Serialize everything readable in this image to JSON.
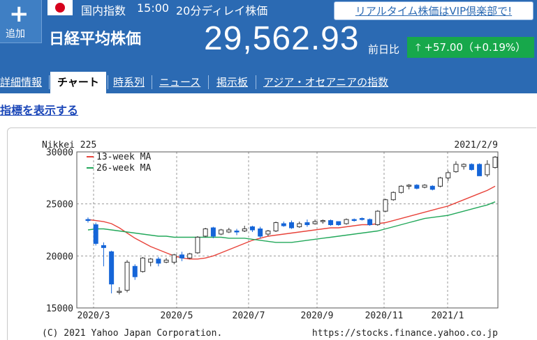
{
  "header": {
    "add_label": "追加",
    "category": "国内指数",
    "time": "15:00",
    "delay": "20分ディレイ株価",
    "name": "日経平均株価",
    "vip_link": "リアルタイム株価はVIP倶楽部で!",
    "price": "29,562.93",
    "prev_label": "前日比",
    "change": "+57.00（+0.19%）",
    "change_color": "#17a84b"
  },
  "tabs": [
    "詳細情報",
    "チャート",
    "時系列",
    "ニュース",
    "掲示板",
    "アジア・オセアニアの指数"
  ],
  "show_indicators": "指標を表示する",
  "chart_labels": {
    "index_name": "Nikkei 225",
    "date": "2021/2/9",
    "copyright": "(C) 2021 Yahoo Japan Corporation.",
    "url": "https://stocks.finance.yahoo.co.jp"
  },
  "chart_data": {
    "type": "candlestick",
    "x_ticks": [
      "2020/3",
      "2020/5",
      "2020/7",
      "2020/9",
      "2020/11",
      "2021/1"
    ],
    "y_ticks": [
      15000,
      20000,
      25000,
      30000
    ],
    "ylim": [
      15000,
      30000
    ],
    "legend": [
      {
        "name": "13-week MA",
        "color": "#e8433a"
      },
      {
        "name": "26-week MA",
        "color": "#22a85a"
      }
    ],
    "candles": [
      {
        "o": 23500,
        "h": 23700,
        "l": 23200,
        "c": 23400
      },
      {
        "o": 23000,
        "h": 23200,
        "l": 21000,
        "c": 21200
      },
      {
        "o": 21000,
        "h": 21300,
        "l": 19000,
        "c": 20800
      },
      {
        "o": 20400,
        "h": 20500,
        "l": 16400,
        "c": 17300
      },
      {
        "o": 16600,
        "h": 17000,
        "l": 16300,
        "c": 16600
      },
      {
        "o": 16700,
        "h": 19600,
        "l": 16500,
        "c": 19400
      },
      {
        "o": 19000,
        "h": 19200,
        "l": 17700,
        "c": 18000
      },
      {
        "o": 18500,
        "h": 19900,
        "l": 18400,
        "c": 19800
      },
      {
        "o": 19400,
        "h": 19800,
        "l": 19000,
        "c": 19700
      },
      {
        "o": 19700,
        "h": 19900,
        "l": 19000,
        "c": 19300
      },
      {
        "o": 19400,
        "h": 19800,
        "l": 19300,
        "c": 19600
      },
      {
        "o": 19400,
        "h": 20200,
        "l": 19200,
        "c": 20100
      },
      {
        "o": 20100,
        "h": 20400,
        "l": 19500,
        "c": 19800
      },
      {
        "o": 19800,
        "h": 20300,
        "l": 19700,
        "c": 20200
      },
      {
        "o": 20300,
        "h": 21900,
        "l": 20200,
        "c": 21800
      },
      {
        "o": 21900,
        "h": 22700,
        "l": 21800,
        "c": 22600
      },
      {
        "o": 22700,
        "h": 22800,
        "l": 21700,
        "c": 21900
      },
      {
        "o": 22100,
        "h": 22600,
        "l": 22000,
        "c": 22500
      },
      {
        "o": 22300,
        "h": 22700,
        "l": 22200,
        "c": 22500
      },
      {
        "o": 22400,
        "h": 22600,
        "l": 22000,
        "c": 22300
      },
      {
        "o": 22400,
        "h": 22900,
        "l": 22300,
        "c": 22600
      },
      {
        "o": 22800,
        "h": 22900,
        "l": 22300,
        "c": 22500
      },
      {
        "o": 22600,
        "h": 22800,
        "l": 21700,
        "c": 21900
      },
      {
        "o": 22100,
        "h": 22500,
        "l": 21900,
        "c": 22400
      },
      {
        "o": 22400,
        "h": 23300,
        "l": 22300,
        "c": 23200
      },
      {
        "o": 23100,
        "h": 23300,
        "l": 22800,
        "c": 22900
      },
      {
        "o": 23200,
        "h": 23400,
        "l": 22600,
        "c": 22700
      },
      {
        "o": 22800,
        "h": 23300,
        "l": 22700,
        "c": 23100
      },
      {
        "o": 23200,
        "h": 23500,
        "l": 22800,
        "c": 23000
      },
      {
        "o": 23100,
        "h": 23500,
        "l": 23000,
        "c": 23300
      },
      {
        "o": 23300,
        "h": 23500,
        "l": 23100,
        "c": 23400
      },
      {
        "o": 23400,
        "h": 23500,
        "l": 22900,
        "c": 23000
      },
      {
        "o": 23300,
        "h": 23300,
        "l": 22900,
        "c": 23000
      },
      {
        "o": 23100,
        "h": 23600,
        "l": 23000,
        "c": 23500
      },
      {
        "o": 23500,
        "h": 23600,
        "l": 23300,
        "c": 23400
      },
      {
        "o": 23600,
        "h": 23700,
        "l": 23400,
        "c": 23500
      },
      {
        "o": 23500,
        "h": 23600,
        "l": 22900,
        "c": 23000
      },
      {
        "o": 23000,
        "h": 24400,
        "l": 22900,
        "c": 24300
      },
      {
        "o": 24300,
        "h": 25500,
        "l": 24200,
        "c": 25400
      },
      {
        "o": 25400,
        "h": 26200,
        "l": 25300,
        "c": 26100
      },
      {
        "o": 26100,
        "h": 26800,
        "l": 26000,
        "c": 26700
      },
      {
        "o": 26700,
        "h": 26900,
        "l": 26400,
        "c": 26800
      },
      {
        "o": 26800,
        "h": 26900,
        "l": 26400,
        "c": 26500
      },
      {
        "o": 26600,
        "h": 26900,
        "l": 26500,
        "c": 26800
      },
      {
        "o": 26700,
        "h": 26800,
        "l": 26300,
        "c": 26400
      },
      {
        "o": 26700,
        "h": 27600,
        "l": 26600,
        "c": 27500
      },
      {
        "o": 27500,
        "h": 28200,
        "l": 27200,
        "c": 28000
      },
      {
        "o": 28100,
        "h": 29100,
        "l": 28000,
        "c": 28800
      },
      {
        "o": 28600,
        "h": 28900,
        "l": 28300,
        "c": 28800
      },
      {
        "o": 28800,
        "h": 28900,
        "l": 28200,
        "c": 28300
      },
      {
        "o": 28800,
        "h": 28900,
        "l": 27700,
        "c": 27700
      },
      {
        "o": 27800,
        "h": 29200,
        "l": 27600,
        "c": 28800
      },
      {
        "o": 28500,
        "h": 29600,
        "l": 28400,
        "c": 29500
      }
    ],
    "ma13": [
      23500,
      23400,
      23300,
      23100,
      22700,
      22200,
      21700,
      21300,
      20900,
      20600,
      20300,
      20000,
      19800,
      19700,
      19700,
      19800,
      20000,
      20300,
      20600,
      20900,
      21200,
      21500,
      21700,
      21900,
      22000,
      22100,
      22200,
      22300,
      22400,
      22500,
      22600,
      22700,
      22700,
      22800,
      22900,
      23000,
      23000,
      23100,
      23200,
      23400,
      23600,
      23800,
      24000,
      24200,
      24400,
      24600,
      24800,
      25100,
      25400,
      25700,
      26000,
      26300,
      26700
    ],
    "ma26": [
      22500,
      22600,
      22600,
      22500,
      22400,
      22300,
      22200,
      22100,
      22000,
      21900,
      21900,
      21800,
      21800,
      21800,
      21800,
      21800,
      21800,
      21800,
      21700,
      21700,
      21700,
      21600,
      21500,
      21400,
      21300,
      21300,
      21300,
      21400,
      21500,
      21600,
      21700,
      21800,
      21900,
      22000,
      22100,
      22200,
      22300,
      22400,
      22600,
      22800,
      23000,
      23200,
      23400,
      23600,
      23700,
      23800,
      23900,
      24100,
      24300,
      24500,
      24700,
      24900,
      25200
    ]
  }
}
